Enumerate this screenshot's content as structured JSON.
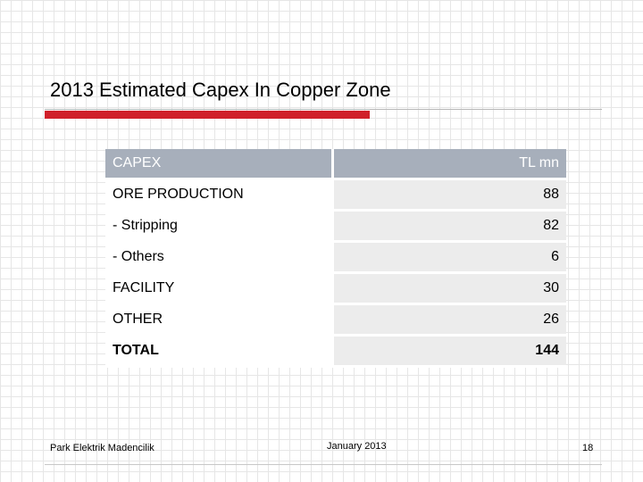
{
  "slide": {
    "title": "2013 Estimated Capex In Copper Zone"
  },
  "table": {
    "header": {
      "label": "CAPEX",
      "unit": "TL mn"
    },
    "rows": [
      {
        "label": "ORE PRODUCTION",
        "value": "88"
      },
      {
        "label": "- Stripping",
        "value": "82"
      },
      {
        "label": "- Others",
        "value": "6"
      },
      {
        "label": "FACILITY",
        "value": "30"
      },
      {
        "label": "OTHER",
        "value": "26"
      },
      {
        "label": "TOTAL",
        "value": "144"
      }
    ]
  },
  "footer": {
    "company": "Park Elektrik Madencilik",
    "date": "January 2013",
    "page_number": "18"
  },
  "colors": {
    "accent_red": "#d0202a",
    "header_gray": "#a7afbb",
    "cell_gray": "#ececec"
  }
}
